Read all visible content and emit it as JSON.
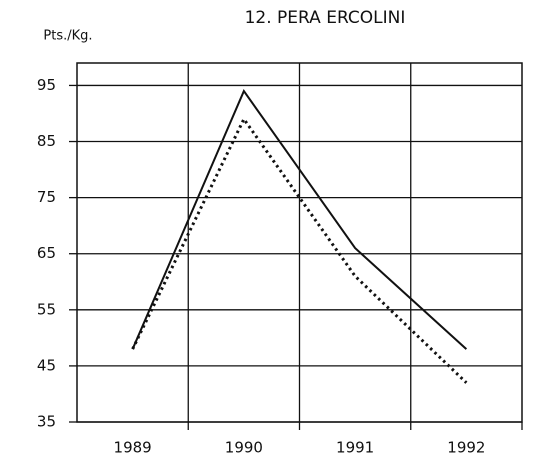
{
  "chart_data": {
    "type": "line",
    "title": "12. PERA ERCOLINI",
    "y_label": "Pts./Kg.",
    "categories": [
      "1989",
      "1990",
      "1991",
      "1992"
    ],
    "series": [
      {
        "color": "#111111",
        "style": "solid",
        "values": [
          48,
          94,
          66,
          48
        ]
      },
      {
        "color": "#111111",
        "style": "dotted",
        "values": [
          48,
          89,
          61,
          42
        ]
      }
    ],
    "ylim": [
      35,
      99
    ],
    "yticks": [
      35,
      45,
      55,
      65,
      75,
      85,
      95
    ],
    "grid": true
  }
}
